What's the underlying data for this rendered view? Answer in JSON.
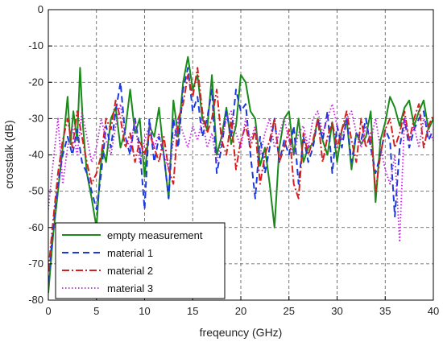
{
  "chart_data": {
    "type": "line",
    "xlabel": "freqeuncy (GHz)",
    "ylabel": "crosstalk (dB)",
    "xlim": [
      0,
      40
    ],
    "ylim": [
      -80,
      0
    ],
    "xticks": [
      "0",
      "5",
      "10",
      "15",
      "20",
      "25",
      "30",
      "35",
      "40"
    ],
    "yticks": [
      "-80",
      "-70",
      "-60",
      "-50",
      "-40",
      "-30",
      "-20",
      "-10",
      "0"
    ],
    "grid": true,
    "legend_position": "bottom-left",
    "series": [
      {
        "name": "empty measurement",
        "color": "#1a8a1a",
        "dash": "solid",
        "x": [
          0,
          0.5,
          1,
          1.5,
          2,
          2.3,
          2.6,
          3,
          3.3,
          3.6,
          4,
          4.5,
          5,
          5.3,
          5.6,
          6,
          6.5,
          7,
          7.5,
          8,
          8.5,
          9,
          9.5,
          10,
          10.5,
          11,
          11.5,
          12,
          12.5,
          13,
          13.5,
          14,
          14.5,
          15,
          15.5,
          16,
          16.5,
          17,
          17.5,
          18,
          18.5,
          19,
          19.5,
          20,
          20.5,
          21,
          21.5,
          22,
          22.5,
          23,
          23.5,
          24,
          24.5,
          25,
          25.5,
          26,
          26.5,
          27,
          27.5,
          28,
          28.5,
          29,
          29.5,
          30,
          30.5,
          31,
          31.5,
          32,
          32.5,
          33,
          33.5,
          34,
          34.5,
          35,
          35.5,
          36,
          36.5,
          37,
          37.5,
          38,
          38.5,
          39,
          39.5,
          40
        ],
        "y": [
          -78,
          -62,
          -50,
          -38,
          -24,
          -37,
          -28,
          -36,
          -16,
          -32,
          -45,
          -52,
          -60,
          -48,
          -38,
          -42,
          -30,
          -27,
          -38,
          -33,
          -22,
          -34,
          -30,
          -46,
          -32,
          -35,
          -27,
          -40,
          -52,
          -25,
          -35,
          -20,
          -13,
          -22,
          -18,
          -30,
          -33,
          -18,
          -40,
          -35,
          -27,
          -37,
          -32,
          -18,
          -20,
          -28,
          -30,
          -43,
          -38,
          -48,
          -60,
          -38,
          -30,
          -28,
          -40,
          -30,
          -42,
          -38,
          -37,
          -30,
          -36,
          -40,
          -31,
          -42,
          -33,
          -30,
          -44,
          -34,
          -37,
          -35,
          -28,
          -53,
          -36,
          -31,
          -24,
          -27,
          -32,
          -27,
          -25,
          -32,
          -28,
          -25,
          -33,
          -30
        ]
      },
      {
        "name": "material 1",
        "color": "#1a3ae0",
        "dash": "dashed",
        "x": [
          0,
          0.5,
          1,
          1.5,
          2,
          2.5,
          3,
          3.5,
          4,
          4.5,
          5,
          5.5,
          6,
          6.5,
          7,
          7.5,
          8,
          8.5,
          9,
          9.5,
          10,
          10.5,
          11,
          11.5,
          12,
          12.5,
          13,
          13.5,
          14,
          14.5,
          15,
          15.5,
          16,
          16.5,
          17,
          17.5,
          18,
          18.5,
          19,
          19.5,
          20,
          20.5,
          21,
          21.5,
          22,
          22.5,
          23,
          23.5,
          24,
          24.5,
          25,
          25.5,
          26,
          26.5,
          27,
          27.5,
          28,
          28.5,
          29,
          29.5,
          30,
          30.5,
          31,
          31.5,
          32,
          32.5,
          33,
          33.5,
          34,
          34.5,
          35,
          35.5,
          36,
          36.5,
          37,
          37.5,
          38,
          38.5,
          39,
          39.5,
          40
        ],
        "y": [
          -75,
          -60,
          -48,
          -40,
          -35,
          -40,
          -33,
          -42,
          -45,
          -50,
          -55,
          -45,
          -32,
          -38,
          -28,
          -20,
          -35,
          -40,
          -30,
          -38,
          -55,
          -30,
          -42,
          -35,
          -40,
          -52,
          -30,
          -38,
          -22,
          -16,
          -28,
          -24,
          -35,
          -30,
          -22,
          -45,
          -38,
          -28,
          -35,
          -22,
          -28,
          -26,
          -40,
          -52,
          -35,
          -45,
          -38,
          -30,
          -42,
          -36,
          -40,
          -32,
          -48,
          -35,
          -42,
          -38,
          -30,
          -36,
          -28,
          -45,
          -32,
          -38,
          -30,
          -42,
          -34,
          -36,
          -30,
          -38,
          -45,
          -40,
          -33,
          -36,
          -57,
          -38,
          -30,
          -38,
          -33,
          -30,
          -28,
          -36,
          -33
        ]
      },
      {
        "name": "material 2",
        "color": "#d42020",
        "dash": "dashdot",
        "x": [
          0,
          0.5,
          1,
          1.5,
          2,
          2.5,
          3,
          3.5,
          4,
          4.5,
          5,
          5.5,
          6,
          6.5,
          7,
          7.5,
          8,
          8.5,
          9,
          9.5,
          10,
          10.5,
          11,
          11.5,
          12,
          12.5,
          13,
          13.5,
          14,
          14.5,
          15,
          15.5,
          16,
          16.5,
          17,
          17.5,
          18,
          18.5,
          19,
          19.5,
          20,
          20.5,
          21,
          21.5,
          22,
          22.5,
          23,
          23.5,
          24,
          24.5,
          25,
          25.5,
          26,
          26.5,
          27,
          27.5,
          28,
          28.5,
          29,
          29.5,
          30,
          30.5,
          31,
          31.5,
          32,
          32.5,
          33,
          33.5,
          34,
          34.5,
          35,
          35.5,
          36,
          36.5,
          37,
          37.5,
          38,
          38.5,
          39,
          39.5,
          40
        ],
        "y": [
          -72,
          -58,
          -45,
          -36,
          -30,
          -38,
          -28,
          -35,
          -42,
          -48,
          -45,
          -40,
          -30,
          -33,
          -25,
          -30,
          -38,
          -34,
          -42,
          -36,
          -40,
          -34,
          -38,
          -42,
          -35,
          -44,
          -48,
          -30,
          -26,
          -18,
          -24,
          -16,
          -28,
          -34,
          -30,
          -22,
          -36,
          -40,
          -30,
          -44,
          -36,
          -32,
          -38,
          -33,
          -48,
          -40,
          -36,
          -30,
          -42,
          -38,
          -33,
          -48,
          -52,
          -34,
          -40,
          -36,
          -30,
          -42,
          -35,
          -31,
          -38,
          -33,
          -28,
          -36,
          -42,
          -30,
          -38,
          -34,
          -50,
          -40,
          -33,
          -30,
          -38,
          -34,
          -28,
          -36,
          -30,
          -26,
          -38,
          -32,
          -29
        ]
      },
      {
        "name": "material 3",
        "color": "#c020e0",
        "dash": "dotted",
        "x": [
          0,
          0.5,
          1,
          1.5,
          2,
          2.5,
          3,
          3.5,
          4,
          4.5,
          5,
          5.5,
          6,
          6.5,
          7,
          7.5,
          8,
          8.5,
          9,
          9.5,
          10,
          10.5,
          11,
          11.5,
          12,
          12.5,
          13,
          13.5,
          14,
          14.5,
          15,
          15.5,
          16,
          16.5,
          17,
          17.5,
          18,
          18.5,
          19,
          19.5,
          20,
          20.5,
          21,
          21.5,
          22,
          22.5,
          23,
          23.5,
          24,
          24.5,
          25,
          25.5,
          26,
          26.5,
          27,
          27.5,
          28,
          28.5,
          29,
          29.5,
          30,
          30.5,
          31,
          31.5,
          32,
          32.5,
          33,
          33.5,
          34,
          34.5,
          35,
          35.5,
          36,
          36.5,
          37,
          37.5,
          38,
          38.5,
          39,
          39.5,
          40
        ],
        "y": [
          -55,
          -42,
          -30,
          -48,
          -38,
          -32,
          -40,
          -28,
          -35,
          -42,
          -38,
          -30,
          -36,
          -40,
          -32,
          -26,
          -35,
          -38,
          -30,
          -42,
          -36,
          -32,
          -38,
          -34,
          -40,
          -44,
          -36,
          -30,
          -34,
          -38,
          -32,
          -36,
          -30,
          -38,
          -34,
          -42,
          -36,
          -30,
          -28,
          -34,
          -38,
          -30,
          -36,
          -32,
          -40,
          -34,
          -30,
          -38,
          -34,
          -30,
          -36,
          -40,
          -34,
          -32,
          -38,
          -30,
          -28,
          -34,
          -30,
          -26,
          -32,
          -36,
          -30,
          -28,
          -34,
          -38,
          -32,
          -36,
          -30,
          -38,
          -44,
          -48,
          -40,
          -64,
          -30,
          -36,
          -32,
          -38,
          -30,
          -33,
          -36
        ]
      }
    ]
  }
}
